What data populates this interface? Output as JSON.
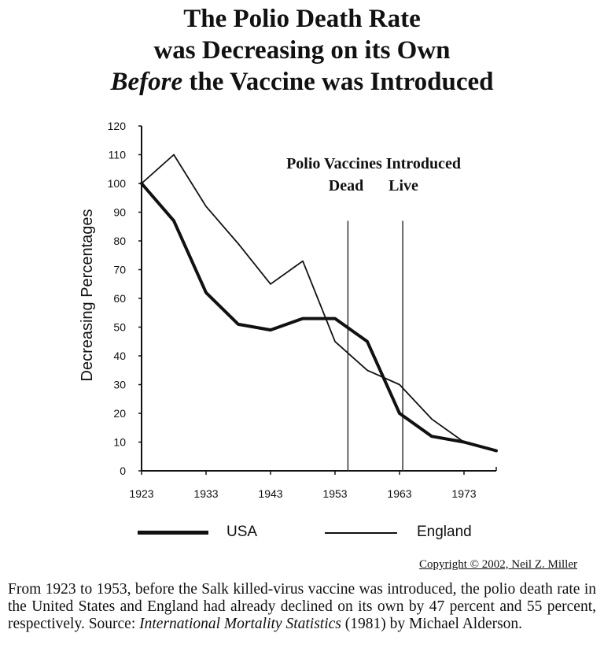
{
  "title": {
    "line1": "The Polio Death Rate",
    "line2": "was Decreasing on its Own",
    "line3_emphasis": "Before",
    "line3_rest": " the Vaccine was Introduced"
  },
  "annotation": {
    "heading": "Polio Vaccines Introduced",
    "dead": "Dead",
    "live": "Live"
  },
  "legend": {
    "usa": "USA",
    "england": "England"
  },
  "copyright": "Copyright © 2002, Neil Z. Miller",
  "caption": {
    "text": "From 1923 to 1953, before the Salk killed-virus vaccine was introduced, the polio death rate in the United States and England had already declined on its own by 47 percent and 55 percent, respectively. Source: ",
    "source_italic": "International Mortality Statistics",
    "source_rest": " (1981) by Michael Alderson."
  },
  "chart_data": {
    "type": "line",
    "ylabel": "Decreasing Percentages",
    "xlim": [
      1923,
      1978
    ],
    "ylim": [
      0,
      120
    ],
    "x_ticks": [
      1923,
      1933,
      1943,
      1953,
      1963,
      1973
    ],
    "y_ticks": [
      0,
      10,
      20,
      30,
      40,
      50,
      60,
      70,
      80,
      90,
      100,
      110,
      120
    ],
    "vaccine_lines": [
      {
        "label": "Dead",
        "x": 1955
      },
      {
        "label": "Live",
        "x": 1963.5
      }
    ],
    "series": [
      {
        "name": "USA",
        "style": "thick",
        "x": [
          1923,
          1928,
          1933,
          1938,
          1943,
          1948,
          1953,
          1958,
          1963,
          1968,
          1973,
          1978
        ],
        "values": [
          100,
          87,
          62,
          51,
          49,
          53,
          53,
          45,
          20,
          12,
          10,
          7
        ]
      },
      {
        "name": "England",
        "style": "thin",
        "x": [
          1923,
          1928,
          1933,
          1938,
          1943,
          1948,
          1953,
          1958,
          1963,
          1968,
          1973,
          1978
        ],
        "values": [
          100,
          110,
          92,
          79,
          65,
          73,
          45,
          35,
          30,
          18,
          10,
          7
        ]
      }
    ],
    "grid": false,
    "legend_position": "bottom"
  }
}
